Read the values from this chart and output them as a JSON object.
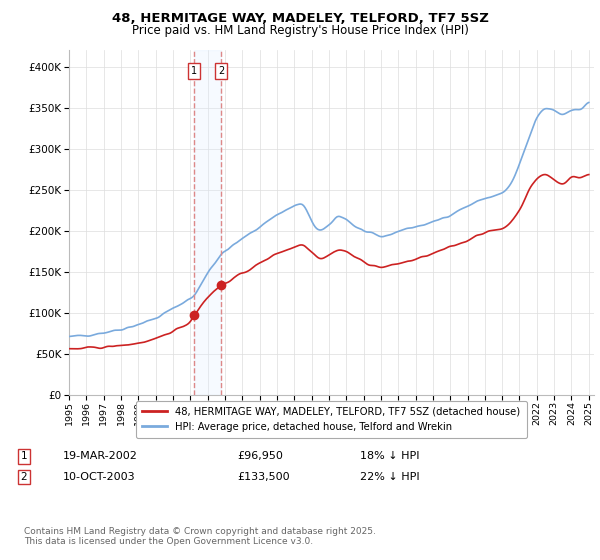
{
  "title1": "48, HERMITAGE WAY, MADELEY, TELFORD, TF7 5SZ",
  "title2": "Price paid vs. HM Land Registry's House Price Index (HPI)",
  "legend1": "48, HERMITAGE WAY, MADELEY, TELFORD, TF7 5SZ (detached house)",
  "legend2": "HPI: Average price, detached house, Telford and Wrekin",
  "sale1_date": "19-MAR-2002",
  "sale1_price": 96950,
  "sale1_hpi": "18% ↓ HPI",
  "sale2_date": "10-OCT-2003",
  "sale2_price": 133500,
  "sale2_hpi": "22% ↓ HPI",
  "sale1_x": 2002.21,
  "sale2_x": 2003.78,
  "red_color": "#cc2222",
  "blue_color": "#7aaadd",
  "vline_color": "#dd8888",
  "shade_color": "#ddeeff",
  "background_color": "#ffffff",
  "grid_color": "#dddddd",
  "footnote": "Contains HM Land Registry data © Crown copyright and database right 2025.\nThis data is licensed under the Open Government Licence v3.0.",
  "ylim_max": 420000,
  "ylim_min": 0
}
